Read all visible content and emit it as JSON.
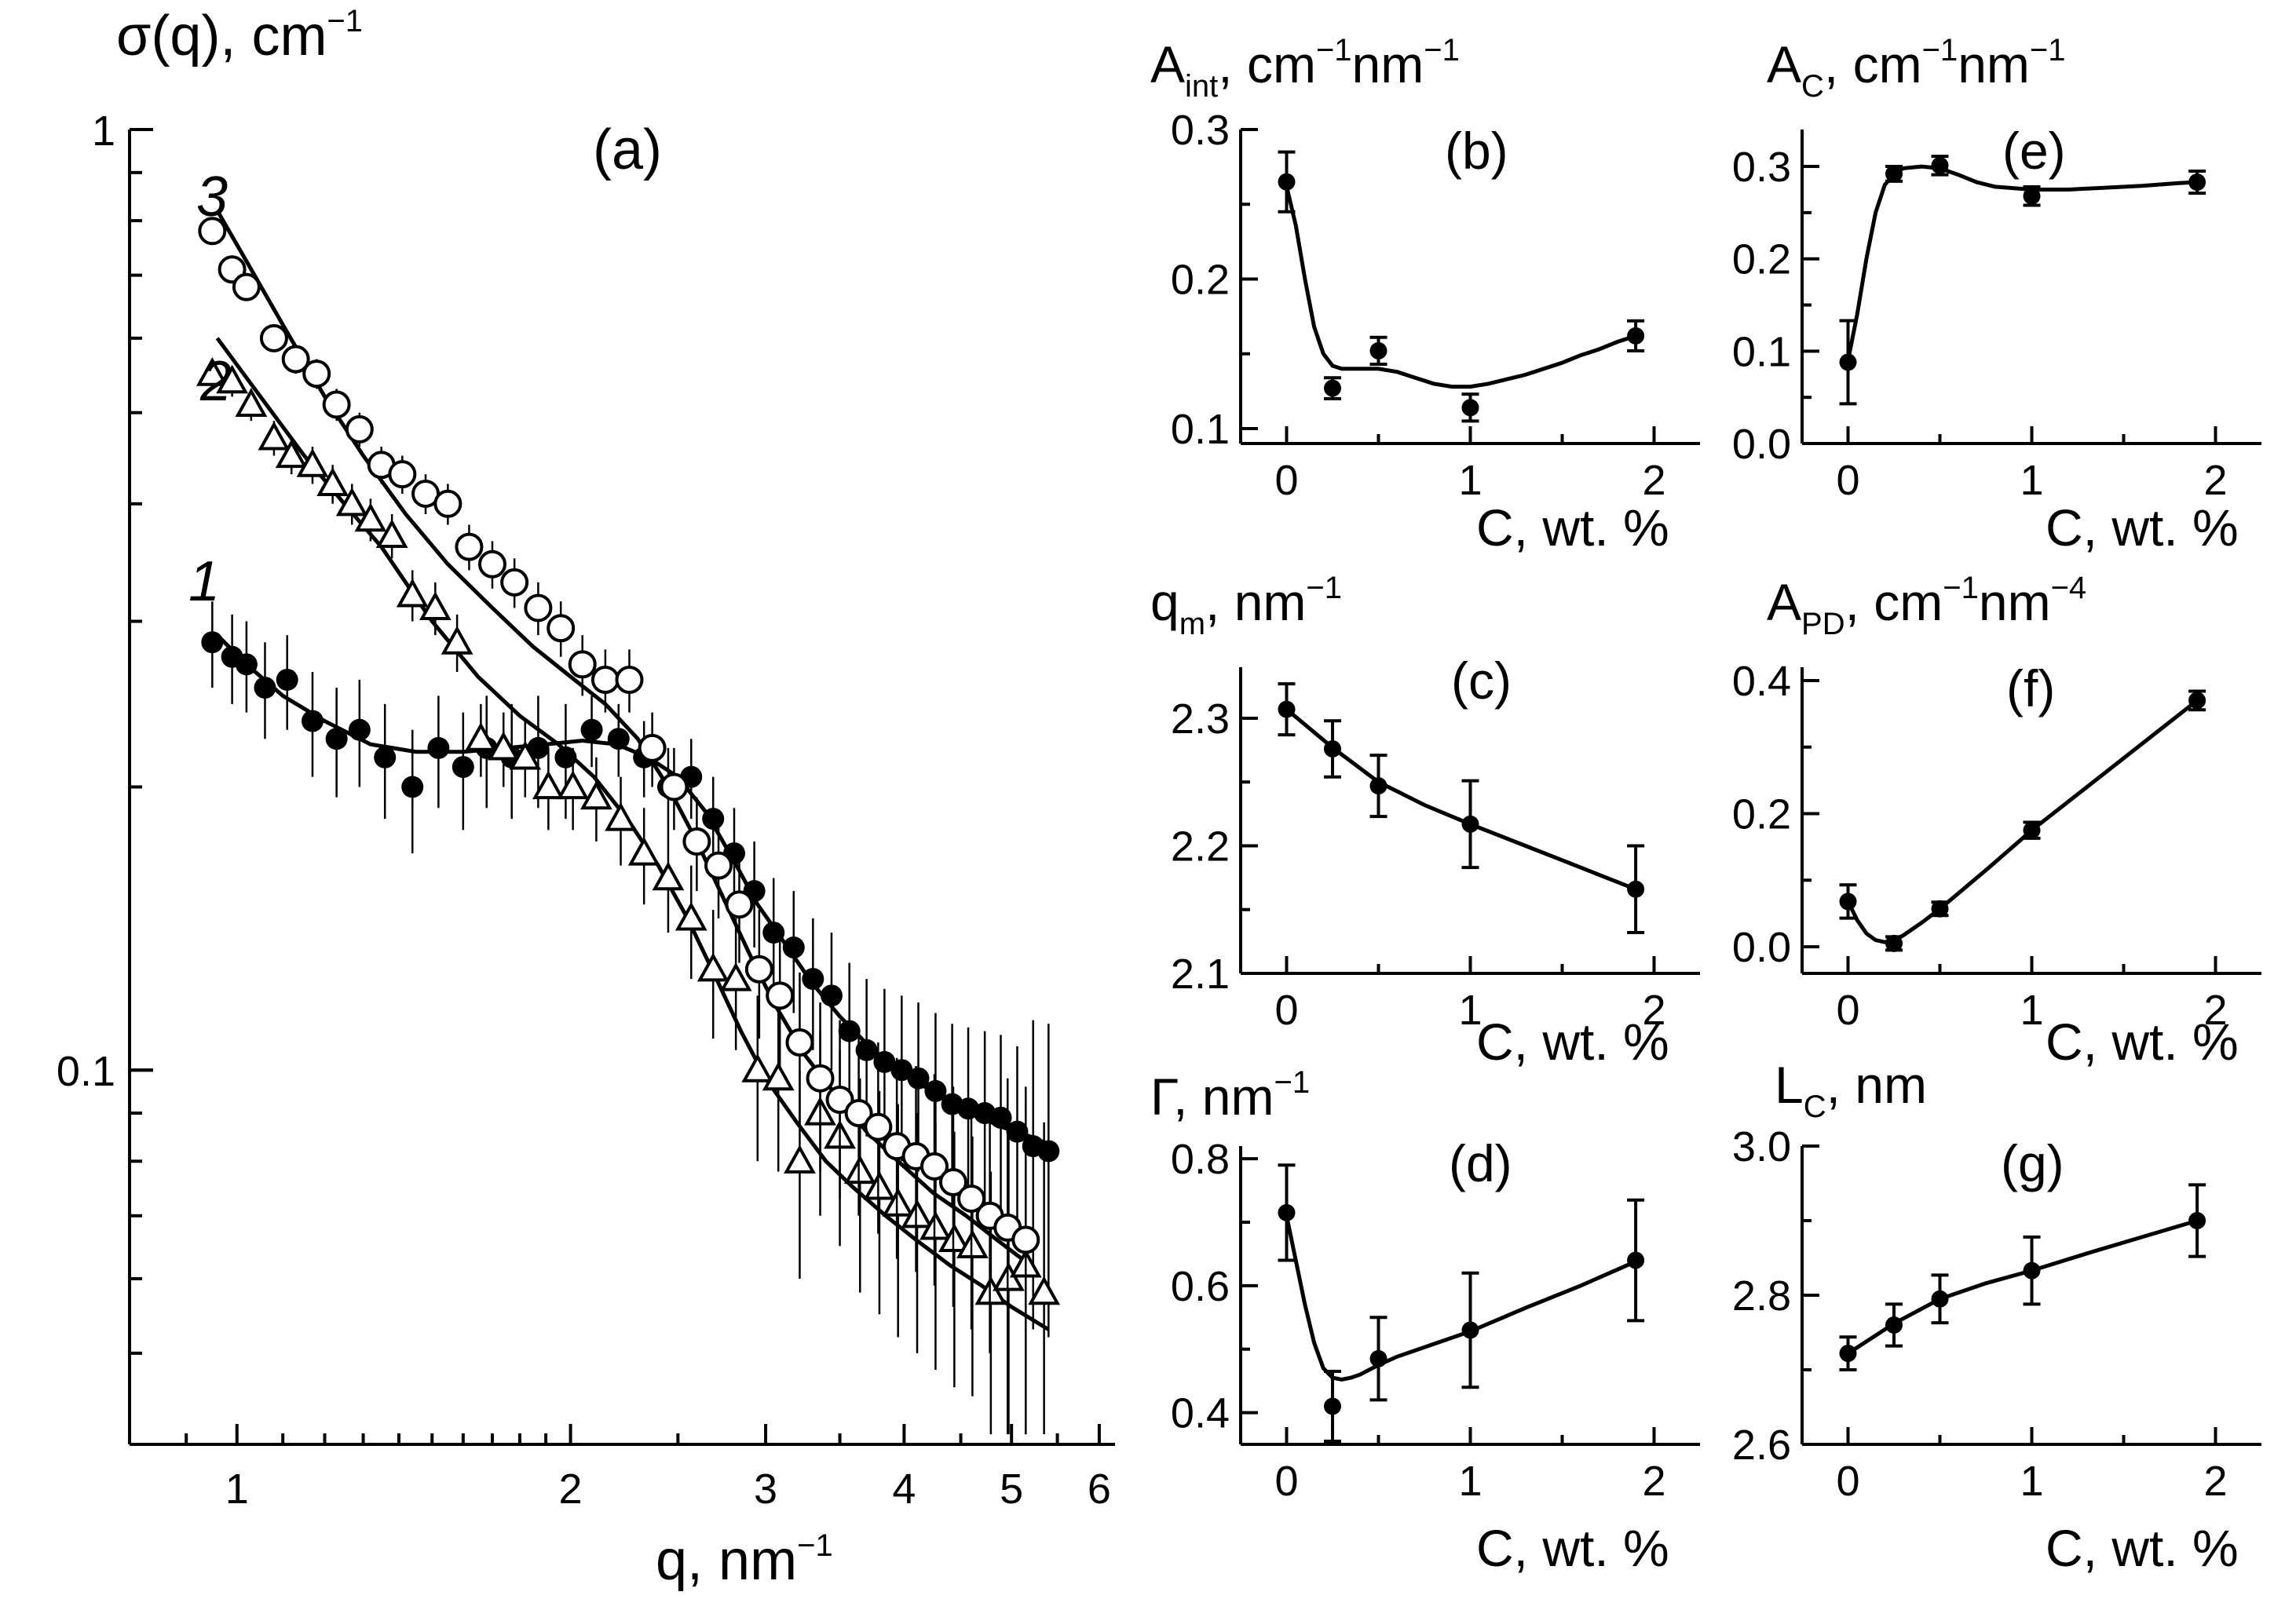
{
  "chart_data": [
    {
      "id": "a",
      "type": "scatter",
      "panel_label": "(a)",
      "title_label": "σ(q), cm",
      "title_sup": "−1",
      "xlabel": "q, nm",
      "xlabel_sup": "−1",
      "xscale": "log",
      "yscale": "log",
      "xlim": [
        0.8,
        6.2
      ],
      "ylim": [
        0.04,
        1.0
      ],
      "x_ticks": [
        1,
        2,
        3,
        4,
        5,
        6
      ],
      "x_tick_labels": [
        "1",
        "2",
        "3",
        "4",
        "5",
        "6"
      ],
      "y_ticks": [
        0.1,
        1
      ],
      "y_tick_labels": [
        "0.1",
        "1"
      ],
      "series": [
        {
          "name": "1",
          "curve_label": "1",
          "marker": "filled-circle",
          "x": [
            0.95,
            0.99,
            1.02,
            1.06,
            1.11,
            1.17,
            1.23,
            1.29,
            1.36,
            1.44,
            1.52,
            1.6,
            1.68,
            1.77,
            1.87,
            1.98,
            2.09,
            2.21,
            2.33,
            2.45,
            2.57,
            2.69,
            2.81,
            2.93,
            3.05,
            3.18,
            3.31,
            3.44,
            3.57,
            3.7,
            3.84,
            3.98,
            4.12,
            4.27,
            4.42,
            4.57,
            4.73,
            4.89,
            5.06,
            5.23,
            5.4
          ],
          "y": [
            0.285,
            0.275,
            0.27,
            0.255,
            0.26,
            0.235,
            0.225,
            0.23,
            0.215,
            0.2,
            0.22,
            0.21,
            0.22,
            0.215,
            0.22,
            0.215,
            0.23,
            0.225,
            0.215,
            0.2,
            0.205,
            0.185,
            0.17,
            0.155,
            0.14,
            0.135,
            0.125,
            0.12,
            0.11,
            0.105,
            0.102,
            0.1,
            0.098,
            0.095,
            0.092,
            0.091,
            0.09,
            0.089,
            0.086,
            0.083,
            0.082
          ],
          "yerr": [
            0.03,
            0.03,
            0.03,
            0.03,
            0.03,
            0.03,
            0.03,
            0.03,
            0.03,
            0.03,
            0.03,
            0.03,
            0.03,
            0.03,
            0.03,
            0.03,
            0.02,
            0.02,
            0.02,
            0.02,
            0.02,
            0.02,
            0.02,
            0.02,
            0.02,
            0.02,
            0.02,
            0.02,
            0.02,
            0.02,
            0.02,
            0.02,
            0.02,
            0.02,
            0.02,
            0.02,
            0.02,
            0.02,
            0.02,
            0.03,
            0.03
          ],
          "fit_x": [
            0.96,
            1.02,
            1.1,
            1.2,
            1.32,
            1.45,
            1.6,
            1.75,
            1.9,
            2.05,
            2.2,
            2.35,
            2.5,
            2.65,
            2.8,
            2.95,
            3.1,
            3.3,
            3.5,
            3.75,
            4.0,
            4.3,
            4.6,
            4.9,
            5.2,
            5.45
          ],
          "fit_y": [
            0.29,
            0.27,
            0.25,
            0.235,
            0.222,
            0.218,
            0.218,
            0.22,
            0.222,
            0.224,
            0.222,
            0.215,
            0.205,
            0.188,
            0.168,
            0.15,
            0.138,
            0.124,
            0.114,
            0.105,
            0.099,
            0.094,
            0.09,
            0.087,
            0.085,
            0.083
          ]
        },
        {
          "name": "2",
          "curve_label": "2",
          "marker": "open-triangle",
          "x": [
            0.95,
            0.99,
            1.03,
            1.08,
            1.12,
            1.17,
            1.22,
            1.27,
            1.32,
            1.38,
            1.44,
            1.51,
            1.58,
            1.66,
            1.74,
            1.82,
            1.91,
            2.01,
            2.11,
            2.22,
            2.33,
            2.45,
            2.57,
            2.69,
            2.82,
            2.95,
            3.08,
            3.22,
            3.36,
            3.5,
            3.65,
            3.8,
            3.95,
            4.11,
            4.27,
            4.44,
            4.61,
            4.79,
            4.97,
            5.15,
            5.35
          ],
          "y": [
            0.55,
            0.54,
            0.51,
            0.47,
            0.45,
            0.44,
            0.42,
            0.4,
            0.385,
            0.37,
            0.32,
            0.31,
            0.285,
            0.225,
            0.22,
            0.215,
            0.2,
            0.2,
            0.195,
            0.185,
            0.17,
            0.16,
            0.145,
            0.128,
            0.125,
            0.1,
            0.098,
            0.08,
            0.09,
            0.085,
            0.078,
            0.075,
            0.072,
            0.07,
            0.068,
            0.066,
            0.065,
            0.058,
            0.06,
            0.062,
            0.058
          ],
          "yerr": [
            0.02,
            0.02,
            0.02,
            0.02,
            0.02,
            0.02,
            0.02,
            0.02,
            0.02,
            0.02,
            0.02,
            0.02,
            0.02,
            0.02,
            0.02,
            0.02,
            0.02,
            0.02,
            0.02,
            0.02,
            0.02,
            0.02,
            0.02,
            0.02,
            0.02,
            0.02,
            0.02,
            0.02,
            0.02,
            0.02,
            0.02,
            0.02,
            0.02,
            0.02,
            0.02,
            0.02,
            0.02,
            0.02,
            0.03,
            0.03,
            0.03
          ],
          "fit_x": [
            0.96,
            1.05,
            1.15,
            1.25,
            1.35,
            1.5,
            1.65,
            1.8,
            1.95,
            2.1,
            2.25,
            2.4,
            2.55,
            2.7,
            2.85,
            3.0,
            3.2,
            3.4,
            3.6,
            3.85,
            4.1,
            4.4,
            4.7,
            5.0,
            5.4
          ],
          "fit_y": [
            0.6,
            0.52,
            0.45,
            0.4,
            0.36,
            0.3,
            0.262,
            0.238,
            0.222,
            0.205,
            0.185,
            0.165,
            0.145,
            0.126,
            0.11,
            0.098,
            0.088,
            0.08,
            0.075,
            0.07,
            0.066,
            0.062,
            0.059,
            0.056,
            0.053
          ]
        },
        {
          "name": "3",
          "curve_label": "3",
          "marker": "open-circle",
          "x": [
            0.95,
            0.99,
            1.02,
            1.08,
            1.13,
            1.18,
            1.23,
            1.29,
            1.35,
            1.41,
            1.48,
            1.55,
            1.62,
            1.7,
            1.78,
            1.87,
            1.96,
            2.05,
            2.15,
            2.26,
            2.37,
            2.48,
            2.6,
            2.72,
            2.84,
            2.96,
            3.09,
            3.22,
            3.36,
            3.5,
            3.64,
            3.79,
            3.94,
            4.1,
            4.26,
            4.43,
            4.6,
            4.78,
            4.96,
            5.15
          ],
          "y": [
            0.78,
            0.71,
            0.68,
            0.6,
            0.57,
            0.55,
            0.51,
            0.48,
            0.44,
            0.43,
            0.41,
            0.4,
            0.36,
            0.345,
            0.33,
            0.31,
            0.295,
            0.27,
            0.26,
            0.26,
            0.22,
            0.2,
            0.175,
            0.165,
            0.15,
            0.128,
            0.12,
            0.107,
            0.098,
            0.093,
            0.09,
            0.087,
            0.083,
            0.081,
            0.079,
            0.076,
            0.073,
            0.07,
            0.068,
            0.066
          ],
          "yerr": [
            0.02,
            0.02,
            0.02,
            0.02,
            0.02,
            0.02,
            0.02,
            0.02,
            0.02,
            0.02,
            0.02,
            0.02,
            0.02,
            0.02,
            0.02,
            0.02,
            0.02,
            0.02,
            0.02,
            0.02,
            0.02,
            0.02,
            0.02,
            0.02,
            0.02,
            0.02,
            0.02,
            0.02,
            0.02,
            0.02,
            0.02,
            0.02,
            0.02,
            0.02,
            0.02,
            0.02,
            0.02,
            0.02,
            0.03,
            0.03
          ],
          "fit_x": [
            0.96,
            1.03,
            1.1,
            1.2,
            1.3,
            1.42,
            1.55,
            1.7,
            1.85,
            2.0,
            2.15,
            2.3,
            2.45,
            2.6,
            2.75,
            2.9,
            3.05,
            3.25,
            3.45,
            3.7,
            3.95,
            4.25,
            4.55,
            4.85,
            5.2
          ],
          "fit_y": [
            0.82,
            0.71,
            0.62,
            0.52,
            0.45,
            0.39,
            0.345,
            0.31,
            0.282,
            0.262,
            0.245,
            0.225,
            0.2,
            0.175,
            0.152,
            0.133,
            0.118,
            0.104,
            0.095,
            0.086,
            0.08,
            0.074,
            0.07,
            0.066,
            0.062
          ]
        }
      ]
    },
    {
      "id": "b",
      "type": "scatter",
      "panel_label": "(b)",
      "ylabel": "A",
      "ylabel_sub": "int",
      "ylabel_tail": ", cm",
      "ylabel_sup1": "−1",
      "ylabel_mid": "nm",
      "ylabel_sup2": "−1",
      "xlabel": "C, wt. %",
      "xlim": [
        -0.25,
        2.25
      ],
      "ylim": [
        0.09,
        0.3
      ],
      "x_ticks": [
        0,
        1,
        2
      ],
      "x_tick_labels": [
        "0",
        "1",
        "2"
      ],
      "y_ticks": [
        0.1,
        0.2,
        0.3
      ],
      "y_tick_labels": [
        "0.1",
        "0.2",
        "0.3"
      ],
      "x": [
        0,
        0.25,
        0.5,
        1.0,
        1.9
      ],
      "y": [
        0.265,
        0.127,
        0.152,
        0.114,
        0.162
      ],
      "yerr": [
        0.02,
        0.007,
        0.009,
        0.009,
        0.01
      ],
      "fit_x": [
        0,
        0.05,
        0.1,
        0.15,
        0.2,
        0.25,
        0.3,
        0.4,
        0.5,
        0.6,
        0.7,
        0.8,
        0.9,
        1.0,
        1.1,
        1.2,
        1.3,
        1.4,
        1.5,
        1.6,
        1.7,
        1.8,
        1.9
      ],
      "fit_y": [
        0.262,
        0.236,
        0.2,
        0.168,
        0.15,
        0.142,
        0.14,
        0.14,
        0.14,
        0.138,
        0.134,
        0.13,
        0.128,
        0.128,
        0.13,
        0.133,
        0.136,
        0.14,
        0.144,
        0.149,
        0.153,
        0.158,
        0.162
      ]
    },
    {
      "id": "c",
      "type": "scatter",
      "panel_label": "(c)",
      "ylabel": "q",
      "ylabel_sub": "m",
      "ylabel_tail": ", nm",
      "ylabel_sup1": "−1",
      "xlabel": "C, wt. %",
      "xlim": [
        -0.25,
        2.25
      ],
      "ylim": [
        2.1,
        2.34
      ],
      "x_ticks": [
        0,
        1,
        2
      ],
      "x_tick_labels": [
        "0",
        "1",
        "2"
      ],
      "y_ticks": [
        2.1,
        2.2,
        2.3
      ],
      "y_tick_labels": [
        "2.1",
        "2.2",
        "2.3"
      ],
      "x": [
        0,
        0.25,
        0.5,
        1.0,
        1.9
      ],
      "y": [
        2.307,
        2.276,
        2.247,
        2.217,
        2.166
      ],
      "yerr": [
        0.02,
        0.022,
        0.024,
        0.034,
        0.034
      ],
      "fit_x": [
        0,
        0.25,
        0.5,
        0.75,
        1.0,
        1.3,
        1.6,
        1.9
      ],
      "fit_y": [
        2.307,
        2.277,
        2.25,
        2.232,
        2.217,
        2.2,
        2.183,
        2.166
      ]
    },
    {
      "id": "d",
      "type": "scatter",
      "panel_label": "(d)",
      "ylabel": "Γ, nm",
      "ylabel_sup1": "−1",
      "xlabel": "C, wt. %",
      "xlim": [
        -0.25,
        2.25
      ],
      "ylim": [
        0.35,
        0.82
      ],
      "x_ticks": [
        0,
        1,
        2
      ],
      "x_tick_labels": [
        "0",
        "1",
        "2"
      ],
      "y_ticks": [
        0.4,
        0.6,
        0.8
      ],
      "y_tick_labels": [
        "0.4",
        "0.6",
        "0.8"
      ],
      "x": [
        0,
        0.25,
        0.5,
        1.0,
        1.9
      ],
      "y": [
        0.715,
        0.41,
        0.485,
        0.53,
        0.64
      ],
      "yerr": [
        0.075,
        0.055,
        0.065,
        0.09,
        0.095
      ],
      "fit_x": [
        0,
        0.05,
        0.1,
        0.15,
        0.2,
        0.25,
        0.3,
        0.35,
        0.4,
        0.5,
        0.6,
        0.8,
        1.0,
        1.3,
        1.6,
        1.9
      ],
      "fit_y": [
        0.71,
        0.64,
        0.57,
        0.51,
        0.47,
        0.455,
        0.452,
        0.455,
        0.46,
        0.475,
        0.488,
        0.508,
        0.528,
        0.565,
        0.6,
        0.638
      ]
    },
    {
      "id": "e",
      "type": "scatter",
      "panel_label": "(e)",
      "ylabel": "A",
      "ylabel_sub": "C",
      "ylabel_tail": ", cm",
      "ylabel_sup1": "−1",
      "ylabel_mid": "nm",
      "ylabel_sup2": "−1",
      "xlabel": "C, wt. %",
      "xlim": [
        -0.25,
        2.25
      ],
      "ylim": [
        0.0,
        0.34
      ],
      "x_ticks": [
        0,
        1,
        2
      ],
      "x_tick_labels": [
        "0",
        "1",
        "2"
      ],
      "y_ticks": [
        0.0,
        0.1,
        0.2,
        0.3
      ],
      "y_tick_labels": [
        "0.0",
        "0.1",
        "0.2",
        "0.3"
      ],
      "x": [
        0,
        0.25,
        0.5,
        1.0,
        1.9
      ],
      "y": [
        0.088,
        0.292,
        0.301,
        0.268,
        0.283
      ],
      "yerr": [
        0.045,
        0.008,
        0.01,
        0.01,
        0.012
      ],
      "fit_x": [
        0,
        0.05,
        0.1,
        0.15,
        0.2,
        0.25,
        0.3,
        0.4,
        0.5,
        0.6,
        0.7,
        0.8,
        1.0,
        1.2,
        1.4,
        1.6,
        1.8,
        1.9
      ],
      "fit_y": [
        0.09,
        0.14,
        0.2,
        0.25,
        0.28,
        0.292,
        0.298,
        0.3,
        0.298,
        0.291,
        0.283,
        0.278,
        0.275,
        0.275,
        0.277,
        0.279,
        0.282,
        0.283
      ]
    },
    {
      "id": "f",
      "type": "scatter",
      "panel_label": "(f)",
      "ylabel": "A",
      "ylabel_sub": "PD",
      "ylabel_tail": ", cm",
      "ylabel_sup1": "−1",
      "ylabel_mid": "nm",
      "ylabel_sup2": "−4",
      "xlabel": "C, wt. %",
      "xlim": [
        -0.25,
        2.25
      ],
      "ylim": [
        -0.04,
        0.42
      ],
      "x_ticks": [
        0,
        1,
        2
      ],
      "x_tick_labels": [
        "0",
        "1",
        "2"
      ],
      "y_ticks": [
        0.0,
        0.2,
        0.4
      ],
      "y_tick_labels": [
        "0.0",
        "0.2",
        "0.4"
      ],
      "x": [
        0,
        0.25,
        0.5,
        1.0,
        1.9
      ],
      "y": [
        0.068,
        0.005,
        0.057,
        0.175,
        0.37
      ],
      "yerr": [
        0.025,
        0.01,
        0.01,
        0.012,
        0.014
      ],
      "fit_x": [
        0,
        0.05,
        0.1,
        0.15,
        0.2,
        0.25,
        0.3,
        0.4,
        0.5,
        0.75,
        1.0,
        1.3,
        1.6,
        1.9
      ],
      "fit_y": [
        0.068,
        0.04,
        0.02,
        0.01,
        0.007,
        0.01,
        0.017,
        0.036,
        0.057,
        0.115,
        0.175,
        0.24,
        0.305,
        0.37
      ]
    },
    {
      "id": "g",
      "type": "scatter",
      "panel_label": "(g)",
      "ylabel": "L",
      "ylabel_sub": "C",
      "ylabel_tail": ", nm",
      "xlabel": "C, wt. %",
      "xlim": [
        -0.25,
        2.25
      ],
      "ylim": [
        2.6,
        3.0
      ],
      "x_ticks": [
        0,
        1,
        2
      ],
      "x_tick_labels": [
        "0",
        "1",
        "2"
      ],
      "y_ticks": [
        2.6,
        2.8,
        3.0
      ],
      "y_tick_labels": [
        "2.6",
        "2.8",
        "3.0"
      ],
      "x": [
        0,
        0.25,
        0.5,
        1.0,
        1.9
      ],
      "y": [
        2.722,
        2.76,
        2.795,
        2.833,
        2.9
      ],
      "yerr": [
        0.022,
        0.028,
        0.032,
        0.045,
        0.048
      ],
      "fit_x": [
        0,
        0.25,
        0.5,
        0.75,
        1.0,
        1.3,
        1.6,
        1.9
      ],
      "fit_y": [
        2.722,
        2.762,
        2.795,
        2.816,
        2.833,
        2.856,
        2.878,
        2.9
      ]
    }
  ]
}
